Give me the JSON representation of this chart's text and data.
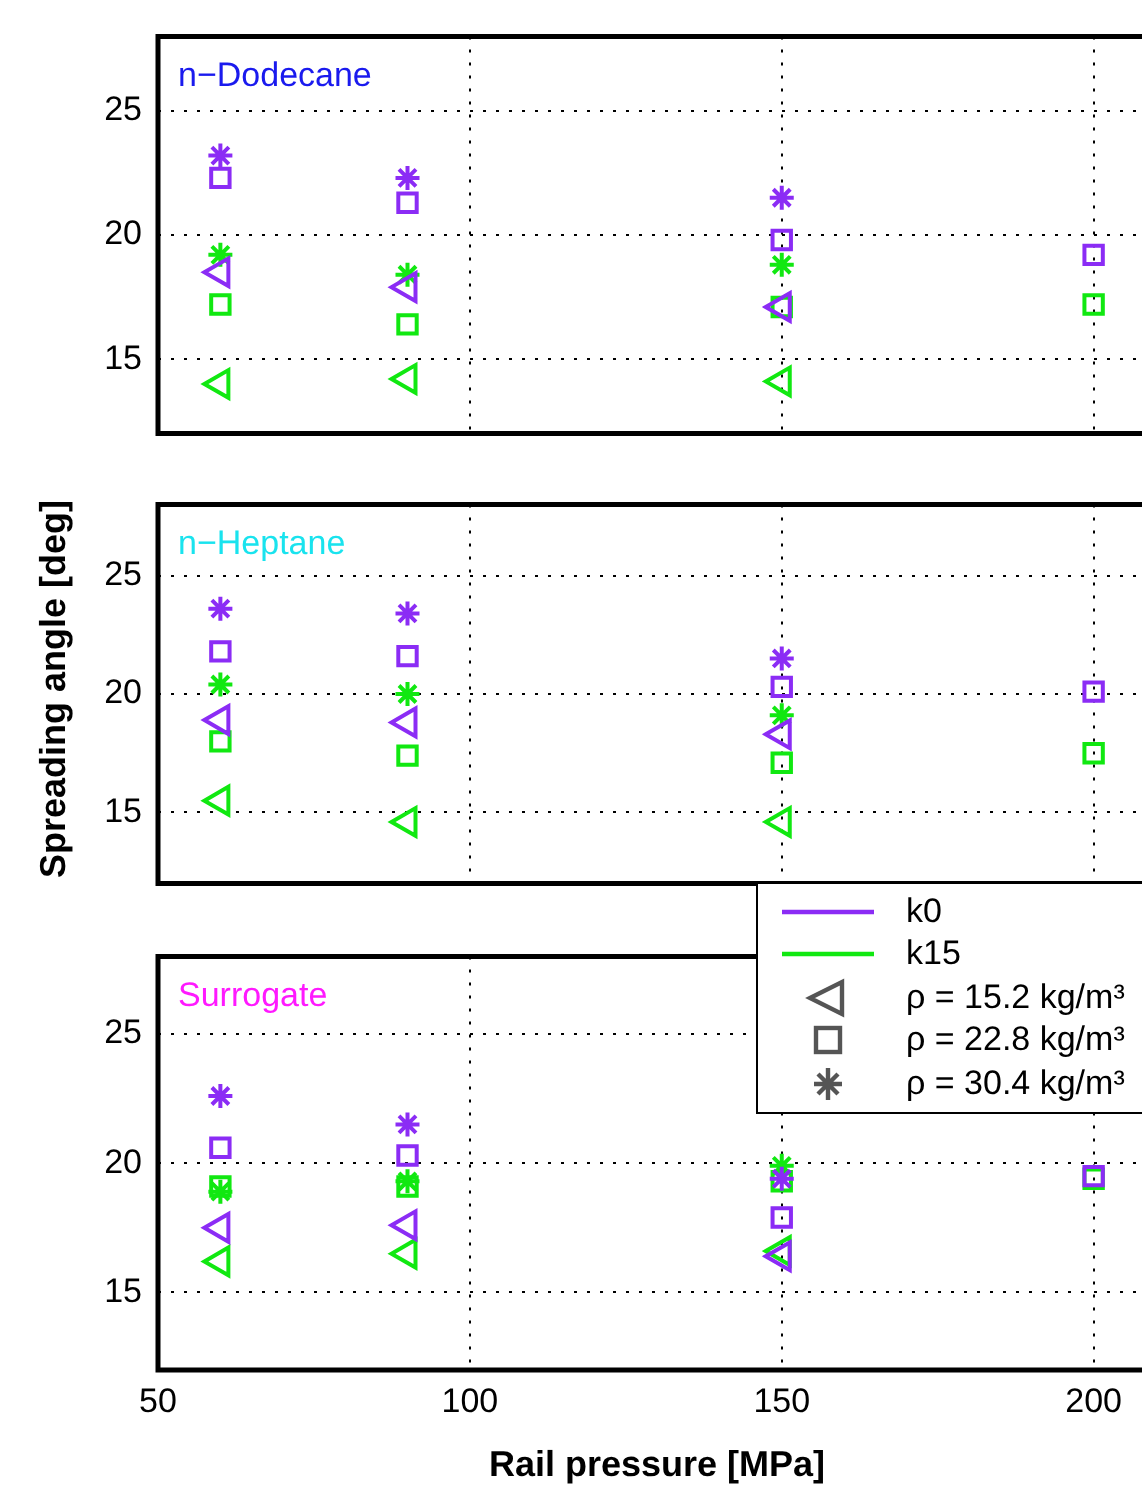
{
  "chart_data": [
    {
      "type": "scatter",
      "title": "n−Dodecane",
      "x": [
        60,
        90,
        150,
        200
      ],
      "xlim": [
        50,
        210
      ],
      "xticks": [
        50,
        100,
        150,
        200
      ],
      "ylim": [
        12,
        28
      ],
      "yticks": [
        15,
        20,
        25
      ],
      "grid": true,
      "tick_labels": "y",
      "series": [
        {
          "color": "#8b2cf5",
          "marker": "triangle",
          "values": [
            18.5,
            17.9,
            17.1,
            null
          ]
        },
        {
          "color": "#8b2cf5",
          "marker": "square",
          "values": [
            22.3,
            21.3,
            19.8,
            19.2
          ]
        },
        {
          "color": "#8b2cf5",
          "marker": "cross",
          "values": [
            23.2,
            22.3,
            21.5,
            null
          ]
        },
        {
          "color": "#11e811",
          "marker": "triangle",
          "values": [
            14.0,
            14.2,
            14.1,
            null
          ]
        },
        {
          "color": "#11e811",
          "marker": "square",
          "values": [
            17.2,
            16.4,
            17.1,
            17.2
          ]
        },
        {
          "color": "#11e811",
          "marker": "cross",
          "values": [
            19.2,
            18.4,
            18.8,
            null
          ]
        }
      ]
    },
    {
      "type": "scatter",
      "title": "n−Heptane",
      "ylabel": "Spreading angle [deg]",
      "x": [
        60,
        90,
        150,
        200
      ],
      "xlim": [
        50,
        210
      ],
      "xticks": [
        50,
        100,
        150,
        200
      ],
      "ylim": [
        12,
        28
      ],
      "yticks": [
        15,
        20,
        25
      ],
      "grid": true,
      "tick_labels": "y",
      "legend": "bottom right",
      "series": [
        {
          "color": "#8b2cf5",
          "marker": "triangle",
          "values": [
            18.9,
            18.8,
            18.3,
            null
          ]
        },
        {
          "color": "#8b2cf5",
          "marker": "square",
          "values": [
            21.8,
            21.6,
            20.3,
            20.1
          ]
        },
        {
          "color": "#8b2cf5",
          "marker": "cross",
          "values": [
            23.6,
            23.4,
            21.5,
            null
          ]
        },
        {
          "color": "#11e811",
          "marker": "triangle",
          "values": [
            15.5,
            14.6,
            14.6,
            null
          ]
        },
        {
          "color": "#11e811",
          "marker": "square",
          "values": [
            18.0,
            17.4,
            17.1,
            17.5
          ]
        },
        {
          "color": "#11e811",
          "marker": "cross",
          "values": [
            20.4,
            20.0,
            19.1,
            null
          ]
        },
        {
          "name": "k0",
          "type": "line",
          "color": "#8b2cf5",
          "marker": "none",
          "values": [
            null,
            null,
            null,
            null
          ]
        },
        {
          "name": "k15",
          "type": "line",
          "color": "#11e811",
          "marker": "none",
          "values": [
            null,
            null,
            null,
            null
          ]
        },
        {
          "name": "ρ = 15.2 kg/m³",
          "color": "#555555",
          "marker": "triangle",
          "values": [
            null,
            null,
            null,
            null
          ]
        },
        {
          "name": "ρ = 22.8 kg/m³",
          "color": "#555555",
          "marker": "square",
          "values": [
            null,
            null,
            null,
            null
          ]
        },
        {
          "name": "ρ = 30.4 kg/m³",
          "color": "#555555",
          "marker": "cross",
          "values": [
            null,
            null,
            null,
            null
          ]
        }
      ]
    },
    {
      "type": "scatter",
      "title": "Surrogate",
      "xlabel": "Rail pressure [MPa]",
      "x": [
        60,
        90,
        150,
        200
      ],
      "xlim": [
        50,
        210
      ],
      "xticks": [
        50,
        100,
        150,
        200
      ],
      "ylim": [
        12,
        28
      ],
      "yticks": [
        15,
        20,
        25
      ],
      "grid": true,
      "series": [
        {
          "color": "#8b2cf5",
          "marker": "triangle",
          "values": [
            17.5,
            17.6,
            16.4,
            null
          ]
        },
        {
          "color": "#8b2cf5",
          "marker": "square",
          "values": [
            20.6,
            20.3,
            17.9,
            19.5
          ]
        },
        {
          "color": "#8b2cf5",
          "marker": "cross",
          "values": [
            22.6,
            21.5,
            19.4,
            null
          ]
        },
        {
          "color": "#11e811",
          "marker": "triangle",
          "values": [
            16.2,
            16.5,
            16.6,
            null
          ]
        },
        {
          "color": "#11e811",
          "marker": "square",
          "values": [
            19.1,
            19.1,
            19.3,
            19.4
          ]
        },
        {
          "color": "#11e811",
          "marker": "cross",
          "values": [
            18.9,
            19.3,
            19.9,
            null
          ]
        }
      ]
    }
  ]
}
